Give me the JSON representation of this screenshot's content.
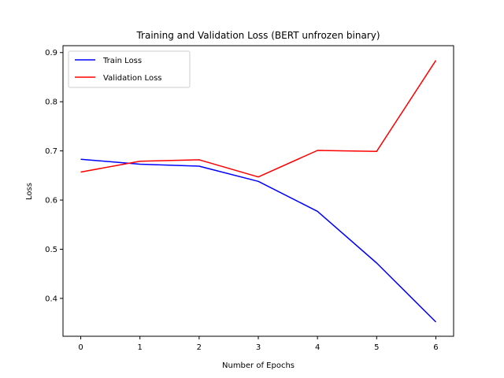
{
  "chart_data": {
    "type": "line",
    "title": "Training and Validation Loss (BERT unfrozen binary)",
    "xlabel": "Number of Epochs",
    "ylabel": "Loss",
    "x": [
      0,
      1,
      2,
      3,
      4,
      5,
      6
    ],
    "xlim": [
      -0.3,
      6.3
    ],
    "ylim": [
      0.323,
      0.914
    ],
    "xticks": [
      0,
      1,
      2,
      3,
      4,
      5,
      6
    ],
    "yticks": [
      0.4,
      0.5,
      0.6,
      0.7,
      0.8,
      0.9
    ],
    "grid": false,
    "legend_position": "top-left",
    "series": [
      {
        "name": "Train Loss",
        "color": "#0000ff",
        "values": [
          0.683,
          0.673,
          0.669,
          0.638,
          0.577,
          0.472,
          0.352
        ]
      },
      {
        "name": "Validation Loss",
        "color": "#ff0000",
        "values": [
          0.657,
          0.679,
          0.682,
          0.647,
          0.701,
          0.699,
          0.884
        ]
      }
    ]
  }
}
